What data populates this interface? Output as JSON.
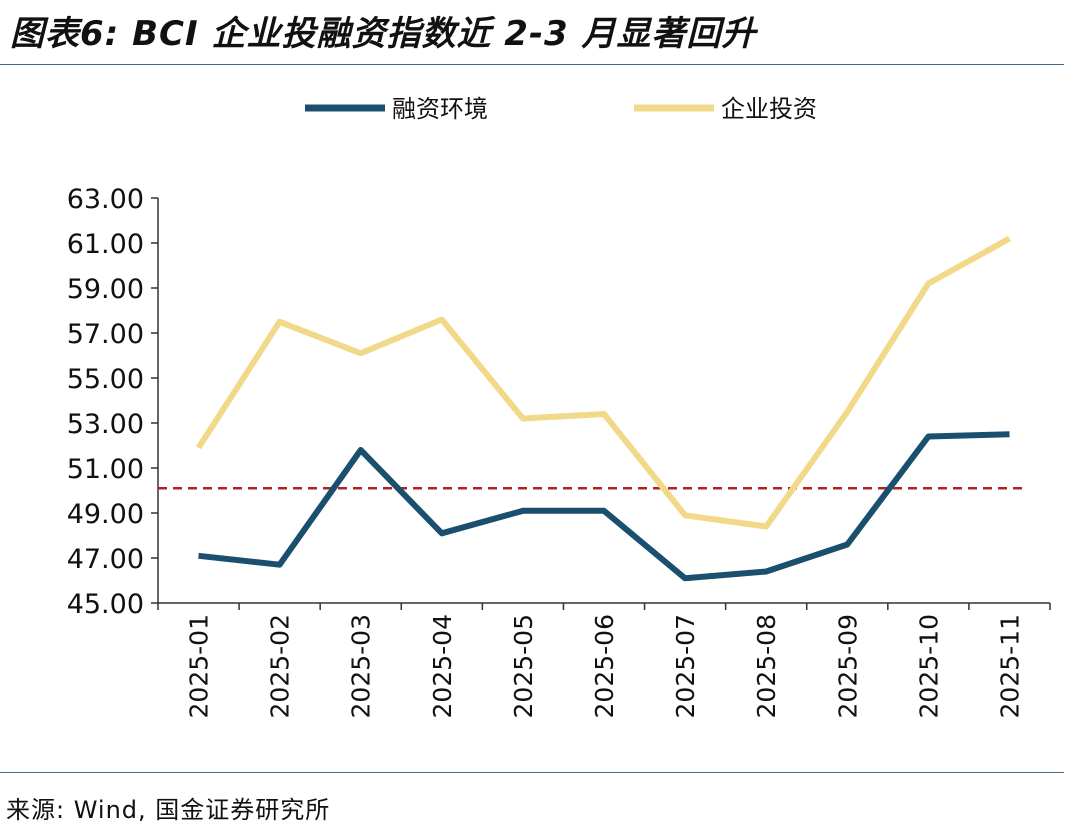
{
  "header": {
    "title": "图表6: BCI 企业投融资指数近 2-3 月显著回升"
  },
  "footer": {
    "source": "来源: Wind, 国金证券研究所"
  },
  "colors": {
    "series_financing": "#1b4f6e",
    "series_investment": "#f2d98a",
    "reference_line": "#b22222",
    "axis": "#333333",
    "rule": "#3e6f8e"
  },
  "chart_data": {
    "type": "line",
    "title": "BCI 企业投融资指数近 2-3 月显著回升",
    "xlabel": "",
    "ylabel": "",
    "categories": [
      "2025-01",
      "2025-02",
      "2025-03",
      "2025-04",
      "2025-05",
      "2025-06",
      "2025-07",
      "2025-08",
      "2025-09",
      "2025-10",
      "2025-11"
    ],
    "ylim": [
      45,
      63
    ],
    "yticks": [
      "45.00",
      "47.00",
      "49.00",
      "51.00",
      "53.00",
      "55.00",
      "57.00",
      "59.00",
      "61.00",
      "63.00"
    ],
    "series": [
      {
        "name": "融资环境",
        "values": [
          47.1,
          46.7,
          51.8,
          48.1,
          49.1,
          49.1,
          46.1,
          46.4,
          47.6,
          52.4,
          52.5
        ]
      },
      {
        "name": "企业投资",
        "values": [
          51.9,
          57.5,
          56.1,
          57.6,
          53.2,
          53.4,
          48.9,
          48.4,
          53.5,
          59.2,
          61.2
        ]
      }
    ],
    "reference_line": {
      "value": 50.1,
      "style": "dashed"
    },
    "legend_position": "top-center",
    "grid": false
  }
}
